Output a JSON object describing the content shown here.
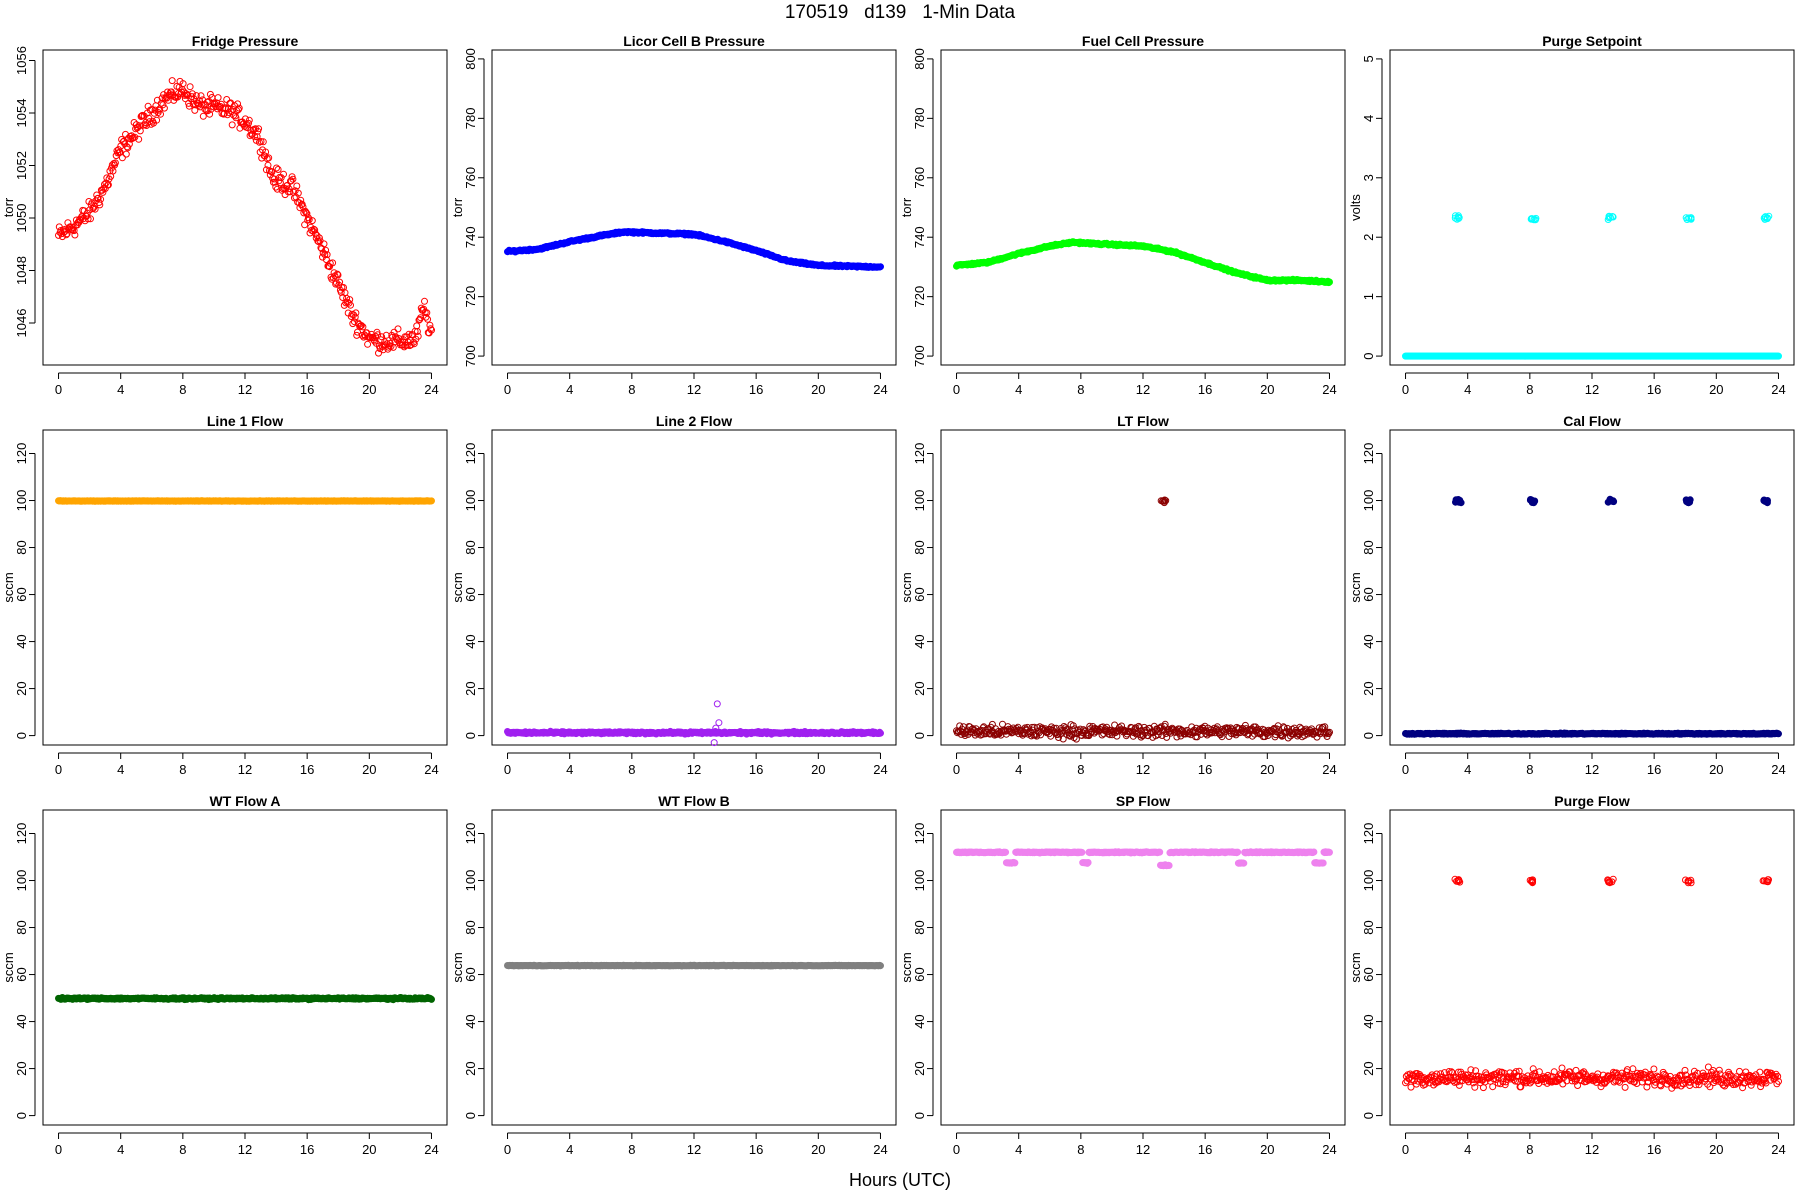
{
  "figure": {
    "title": "170519   d139   1-Min Data",
    "xlabel": "Hours (UTC)"
  },
  "chart_data": [
    {
      "type": "scatter",
      "title": "Fridge Pressure",
      "ylabel": "torr",
      "color": "#ff0000",
      "x_ticks": [
        0,
        4,
        8,
        12,
        16,
        20,
        24
      ],
      "y_ticks": [
        1046,
        1048,
        1050,
        1052,
        1054,
        1056
      ],
      "xlim": [
        -1,
        25
      ],
      "ylim": [
        1044.4,
        1056.4
      ],
      "filled": false,
      "noise": 0.35,
      "series_anchors": [
        [
          0,
          1049.3
        ],
        [
          1,
          1049.7
        ],
        [
          2,
          1050.2
        ],
        [
          3,
          1051.2
        ],
        [
          4,
          1052.6
        ],
        [
          5,
          1053.3
        ],
        [
          6,
          1054.0
        ],
        [
          7,
          1054.6
        ],
        [
          8,
          1054.9
        ],
        [
          9,
          1054.3
        ],
        [
          10,
          1054.2
        ],
        [
          11,
          1054.1
        ],
        [
          12,
          1053.7
        ],
        [
          13,
          1053.0
        ],
        [
          13.8,
          1051.5
        ],
        [
          15,
          1051.2
        ],
        [
          16,
          1050.0
        ],
        [
          17,
          1048.8
        ],
        [
          18,
          1047.5
        ],
        [
          19,
          1046.2
        ],
        [
          20,
          1045.4
        ],
        [
          21,
          1045.3
        ],
        [
          22,
          1045.3
        ],
        [
          23,
          1045.4
        ],
        [
          23.5,
          1046.6
        ],
        [
          24,
          1045.6
        ]
      ]
    },
    {
      "type": "scatter",
      "title": "Licor Cell B Pressure",
      "ylabel": "torr",
      "color": "#0000ff",
      "x_ticks": [
        0,
        4,
        8,
        12,
        16,
        20,
        24
      ],
      "y_ticks": [
        700,
        720,
        740,
        760,
        780,
        800
      ],
      "xlim": [
        -1,
        25
      ],
      "ylim": [
        697,
        803
      ],
      "filled": true,
      "noise": 0.25,
      "series_anchors": [
        [
          0,
          735.2
        ],
        [
          2,
          736.0
        ],
        [
          4,
          738.5
        ],
        [
          6,
          740.5
        ],
        [
          7.5,
          741.8
        ],
        [
          9,
          741.5
        ],
        [
          12,
          741.0
        ],
        [
          14,
          738.5
        ],
        [
          16,
          735.5
        ],
        [
          18,
          732.0
        ],
        [
          20,
          730.5
        ],
        [
          22,
          730.2
        ],
        [
          24,
          730.0
        ]
      ]
    },
    {
      "type": "scatter",
      "title": "Fuel Cell Pressure",
      "ylabel": "torr",
      "color": "#00ff00",
      "x_ticks": [
        0,
        4,
        8,
        12,
        16,
        20,
        24
      ],
      "y_ticks": [
        700,
        720,
        740,
        760,
        780,
        800
      ],
      "xlim": [
        -1,
        25
      ],
      "ylim": [
        697,
        803
      ],
      "filled": true,
      "noise": 0.25,
      "series_anchors": [
        [
          0,
          730.5
        ],
        [
          2,
          731.5
        ],
        [
          4,
          734.5
        ],
        [
          6,
          737.0
        ],
        [
          7.5,
          738.3
        ],
        [
          9,
          737.8
        ],
        [
          12,
          737.0
        ],
        [
          14,
          735.0
        ],
        [
          16,
          731.5
        ],
        [
          18,
          728.0
        ],
        [
          20,
          725.5
        ],
        [
          22,
          725.5
        ],
        [
          24,
          725.0
        ]
      ]
    },
    {
      "type": "scatter",
      "title": "Purge Setpoint",
      "ylabel": "volts",
      "color": "#00ffff",
      "x_ticks": [
        0,
        4,
        8,
        12,
        16,
        20,
        24
      ],
      "y_ticks": [
        0,
        1,
        2,
        3,
        4,
        5
      ],
      "xlim": [
        -1,
        25
      ],
      "ylim": [
        -0.15,
        5.15
      ],
      "filled": true,
      "noise": 0,
      "series_anchors": [
        [
          0,
          0
        ],
        [
          24,
          0
        ]
      ],
      "clusters": [
        {
          "x": 3.3,
          "y": 2.33
        },
        {
          "x": 8.2,
          "y": 2.3
        },
        {
          "x": 13.2,
          "y": 2.33
        },
        {
          "x": 18.2,
          "y": 2.32
        },
        {
          "x": 23.2,
          "y": 2.33
        }
      ],
      "cluster_filled": false
    },
    {
      "type": "scatter",
      "title": "Line 1 Flow",
      "ylabel": "sccm",
      "color": "#ffa500",
      "x_ticks": [
        0,
        4,
        8,
        12,
        16,
        20,
        24
      ],
      "y_ticks": [
        0,
        20,
        40,
        60,
        80,
        100,
        120
      ],
      "xlim": [
        -1,
        25
      ],
      "ylim": [
        -4,
        130
      ],
      "filled": true,
      "noise": 0.1,
      "series_anchors": [
        [
          0,
          99.8
        ],
        [
          24,
          99.8
        ]
      ]
    },
    {
      "type": "scatter",
      "title": "Line 2 Flow",
      "ylabel": "sccm",
      "color": "#a020f0",
      "x_ticks": [
        0,
        4,
        8,
        12,
        16,
        20,
        24
      ],
      "y_ticks": [
        0,
        20,
        40,
        60,
        80,
        100,
        120
      ],
      "xlim": [
        -1,
        25
      ],
      "ylim": [
        -4,
        130
      ],
      "filled": true,
      "noise": 0.4,
      "series_anchors": [
        [
          0,
          1.2
        ],
        [
          24,
          1.2
        ]
      ],
      "outliers": [
        [
          13.5,
          13.5
        ],
        [
          13.6,
          5.5
        ],
        [
          13.4,
          3.2
        ],
        [
          13.3,
          -3.0
        ]
      ]
    },
    {
      "type": "scatter",
      "title": "LT Flow",
      "ylabel": "sccm",
      "color": "#8b0000",
      "x_ticks": [
        0,
        4,
        8,
        12,
        16,
        20,
        24
      ],
      "y_ticks": [
        0,
        20,
        40,
        60,
        80,
        100,
        120
      ],
      "xlim": [
        -1,
        25
      ],
      "ylim": [
        -4,
        130
      ],
      "filled": false,
      "noise": 2.2,
      "series_anchors": [
        [
          0,
          1.8
        ],
        [
          24,
          1.8
        ]
      ],
      "clusters": [
        {
          "x": 13.3,
          "y": 99.5
        }
      ],
      "cluster_filled": false
    },
    {
      "type": "scatter",
      "title": "Cal Flow",
      "ylabel": "sccm",
      "color": "#000080",
      "x_ticks": [
        0,
        4,
        8,
        12,
        16,
        20,
        24
      ],
      "y_ticks": [
        0,
        20,
        40,
        60,
        80,
        100,
        120
      ],
      "xlim": [
        -1,
        25
      ],
      "ylim": [
        -4,
        130
      ],
      "filled": true,
      "noise": 0.2,
      "series_anchors": [
        [
          0,
          0.8
        ],
        [
          24,
          0.8
        ]
      ],
      "clusters": [
        {
          "x": 3.4,
          "y": 99.8
        },
        {
          "x": 8.2,
          "y": 99.8
        },
        {
          "x": 13.2,
          "y": 99.8
        },
        {
          "x": 18.2,
          "y": 99.8
        },
        {
          "x": 23.2,
          "y": 99.8
        }
      ],
      "cluster_filled": true
    },
    {
      "type": "scatter",
      "title": "WT Flow A",
      "ylabel": "sccm",
      "color": "#006400",
      "x_ticks": [
        0,
        4,
        8,
        12,
        16,
        20,
        24
      ],
      "y_ticks": [
        0,
        20,
        40,
        60,
        80,
        100,
        120
      ],
      "xlim": [
        -1,
        25
      ],
      "ylim": [
        -4,
        130
      ],
      "filled": true,
      "noise": 0.3,
      "series_anchors": [
        [
          0,
          49.8
        ],
        [
          24,
          49.8
        ]
      ]
    },
    {
      "type": "scatter",
      "title": "WT Flow B",
      "ylabel": "sccm",
      "color": "#808080",
      "x_ticks": [
        0,
        4,
        8,
        12,
        16,
        20,
        24
      ],
      "y_ticks": [
        0,
        20,
        40,
        60,
        80,
        100,
        120
      ],
      "xlim": [
        -1,
        25
      ],
      "ylim": [
        -4,
        130
      ],
      "filled": true,
      "noise": 0.1,
      "series_anchors": [
        [
          0,
          63.8
        ],
        [
          24,
          63.8
        ]
      ]
    },
    {
      "type": "scatter",
      "title": "SP Flow",
      "ylabel": "sccm",
      "color": "#ee82ee",
      "x_ticks": [
        0,
        4,
        8,
        12,
        16,
        20,
        24
      ],
      "y_ticks": [
        0,
        20,
        40,
        60,
        80,
        100,
        120
      ],
      "xlim": [
        -1,
        25
      ],
      "ylim": [
        -4,
        130
      ],
      "filled": true,
      "noise": 0.2,
      "series_anchors": [
        [
          0,
          112
        ],
        [
          24,
          112
        ]
      ],
      "dips": [
        {
          "x0": 3.2,
          "x1": 3.8,
          "y": 107.5
        },
        {
          "x0": 8.1,
          "x1": 8.5,
          "y": 107.5
        },
        {
          "x0": 13.1,
          "x1": 13.7,
          "y": 106.5
        },
        {
          "x0": 18.1,
          "x1": 18.5,
          "y": 107.5
        },
        {
          "x0": 23.0,
          "x1": 23.6,
          "y": 107.5
        }
      ]
    },
    {
      "type": "scatter",
      "title": "Purge Flow",
      "ylabel": "sccm",
      "color": "#ff0000",
      "x_ticks": [
        0,
        4,
        8,
        12,
        16,
        20,
        24
      ],
      "y_ticks": [
        0,
        20,
        40,
        60,
        80,
        100,
        120
      ],
      "xlim": [
        -1,
        25
      ],
      "ylim": [
        -4,
        130
      ],
      "filled": false,
      "noise": 3.0,
      "series_anchors": [
        [
          0,
          16
        ],
        [
          24,
          16
        ]
      ],
      "clusters": [
        {
          "x": 3.3,
          "y": 99.8
        },
        {
          "x": 8.2,
          "y": 99.8
        },
        {
          "x": 13.2,
          "y": 99.8
        },
        {
          "x": 18.2,
          "y": 99.8
        },
        {
          "x": 23.2,
          "y": 99.8
        }
      ],
      "cluster_filled": false
    }
  ]
}
